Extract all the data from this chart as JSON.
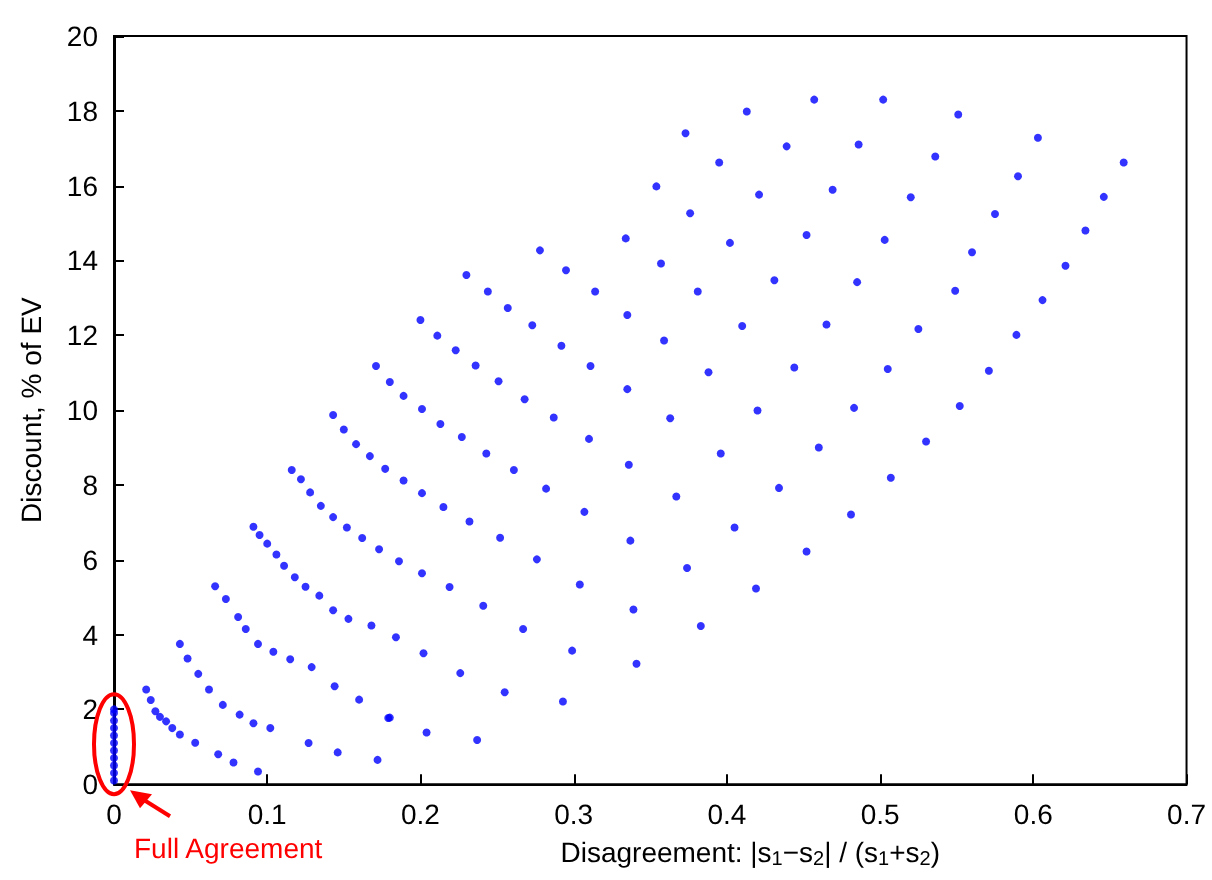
{
  "chart_data": {
    "type": "scatter",
    "xlabel": "Disagreement: |s$_{1}$−s$_{2}$| / (s$_{1}$+s$_{2}$)",
    "ylabel": "Discount, % of EV",
    "annotations": [
      "Full Agreement"
    ],
    "xlim": [
      0,
      0.7
    ],
    "xticks": [
      0,
      0.1,
      0.2,
      0.3,
      0.4,
      0.5,
      0.6,
      0.7
    ],
    "ylim": [
      0,
      20
    ],
    "yticks": [
      0,
      2,
      4,
      6,
      8,
      10,
      12,
      14,
      16,
      18,
      20
    ],
    "grid": false,
    "marker": "circle",
    "series": [
      {
        "color": "#0000ff",
        "x": [
          0,
          0,
          0,
          0,
          0,
          0,
          0,
          0,
          0,
          0,
          0,
          0.021,
          0.024,
          0.027,
          0.03,
          0.034,
          0.038,
          0.043,
          0.053,
          0.068,
          0.078,
          0.094,
          0.043,
          0.048,
          0.055,
          0.062,
          0.071,
          0.082,
          0.091,
          0.102,
          0.127,
          0.146,
          0.172,
          0.066,
          0.073,
          0.081,
          0.086,
          0.094,
          0.104,
          0.115,
          0.129,
          0.144,
          0.16,
          0.179,
          0.204,
          0.237,
          0.091,
          0.095,
          0.1,
          0.106,
          0.111,
          0.118,
          0.125,
          0.134,
          0.143,
          0.153,
          0.116,
          0.122,
          0.128,
          0.135,
          0.143,
          0.152,
          0.162,
          0.143,
          0.15,
          0.158,
          0.167,
          0.18,
          0.255,
          0.293,
          0.226,
          0.202,
          0.184,
          0.168,
          0.267,
          0.299,
          0.341,
          0.339,
          0.383,
          0.241,
          0.219,
          0.201,
          0.186,
          0.173,
          0.276,
          0.304,
          0.374,
          0.337,
          0.405,
          0.252,
          0.232,
          0.215,
          0.201,
          0.189,
          0.177,
          0.261,
          0.282,
          0.307,
          0.336,
          0.367,
          0.396,
          0.363,
          0.31,
          0.287,
          0.268,
          0.251,
          0.236,
          0.223,
          0.211,
          0.2,
          0.171,
          0.18,
          0.189,
          0.201,
          0.213,
          0.227,
          0.243,
          0.335,
          0.311,
          0.292,
          0.273,
          0.257,
          0.244,
          0.23,
          0.278,
          0.295,
          0.314,
          0.335,
          0.359,
          0.388,
          0.334,
          0.357,
          0.381,
          0.41,
          0.402,
          0.457,
          0.502,
          0.413,
          0.551,
          0.373,
          0.603,
          0.439,
          0.486,
          0.659,
          0.395,
          0.536,
          0.59,
          0.354,
          0.421,
          0.469,
          0.52,
          0.646,
          0.575,
          0.376,
          0.452,
          0.503,
          0.56,
          0.634,
          0.621,
          0.431,
          0.485,
          0.549,
          0.606,
          0.465,
          0.525,
          0.589,
          0.444,
          0.505,
          0.571,
          0.42,
          0.483,
          0.552,
          0.46,
          0.53,
          0.434,
          0.507,
          0.481,
          0.452,
          0.419
        ],
        "values": [
          0.1,
          0.3,
          0.5,
          0.7,
          0.9,
          1.1,
          1.3,
          1.5,
          1.7,
          1.9,
          2.0,
          2.53,
          2.25,
          1.95,
          1.8,
          1.68,
          1.5,
          1.33,
          1.11,
          0.8,
          0.58,
          0.34,
          3.75,
          3.36,
          2.95,
          2.53,
          2.12,
          1.86,
          1.63,
          1.5,
          1.1,
          0.85,
          0.65,
          5.29,
          4.95,
          4.47,
          4.15,
          3.75,
          3.54,
          3.34,
          3.13,
          2.62,
          2.26,
          1.77,
          1.38,
          1.18,
          6.88,
          6.66,
          6.43,
          6.14,
          5.84,
          5.53,
          5.28,
          5.04,
          4.65,
          4.42,
          8.4,
          8.15,
          7.8,
          7.44,
          7.14,
          6.86,
          6.58,
          9.87,
          9.48,
          9.09,
          8.77,
          1.78,
          2.46,
          2.21,
          2.97,
          3.5,
          3.93,
          4.24,
          4.15,
          3.57,
          3.22,
          4.67,
          4.23,
          4.77,
          5.27,
          5.64,
          5.96,
          6.28,
          6.01,
          5.34,
          5.78,
          6.51,
          6.86,
          6.59,
          7.02,
          7.41,
          7.78,
          8.12,
          8.43,
          8.4,
          7.9,
          7.28,
          8.54,
          7.69,
          8.84,
          9.78,
          9.23,
          9.8,
          10.29,
          10.77,
          11.19,
          11.6,
          11.99,
          12.41,
          11.18,
          10.75,
          10.38,
          10.03,
          9.63,
          9.28,
          8.84,
          10.56,
          11.18,
          11.72,
          12.27,
          12.73,
          13.17,
          13.61,
          14.27,
          13.74,
          13.17,
          12.54,
          11.86,
          11.01,
          14.59,
          13.92,
          13.17,
          12.25,
          14.47,
          18.3,
          18.3,
          17.98,
          17.9,
          17.4,
          17.28,
          17.05,
          17.1,
          16.62,
          16.62,
          16.78,
          16.25,
          15.98,
          15.76,
          15.89,
          15.69,
          15.7,
          15.24,
          15.26,
          14.68,
          14.55,
          14.22,
          14.8,
          13.86,
          13.47,
          13.42,
          13.19,
          12.94,
          12.29,
          12.17,
          12.01,
          11.14,
          11.1,
          11.05,
          9.99,
          10.06,
          10.11,
          9.0,
          9.16,
          7.92,
          8.19,
          7.21,
          6.22,
          5.23
        ]
      }
    ]
  }
}
